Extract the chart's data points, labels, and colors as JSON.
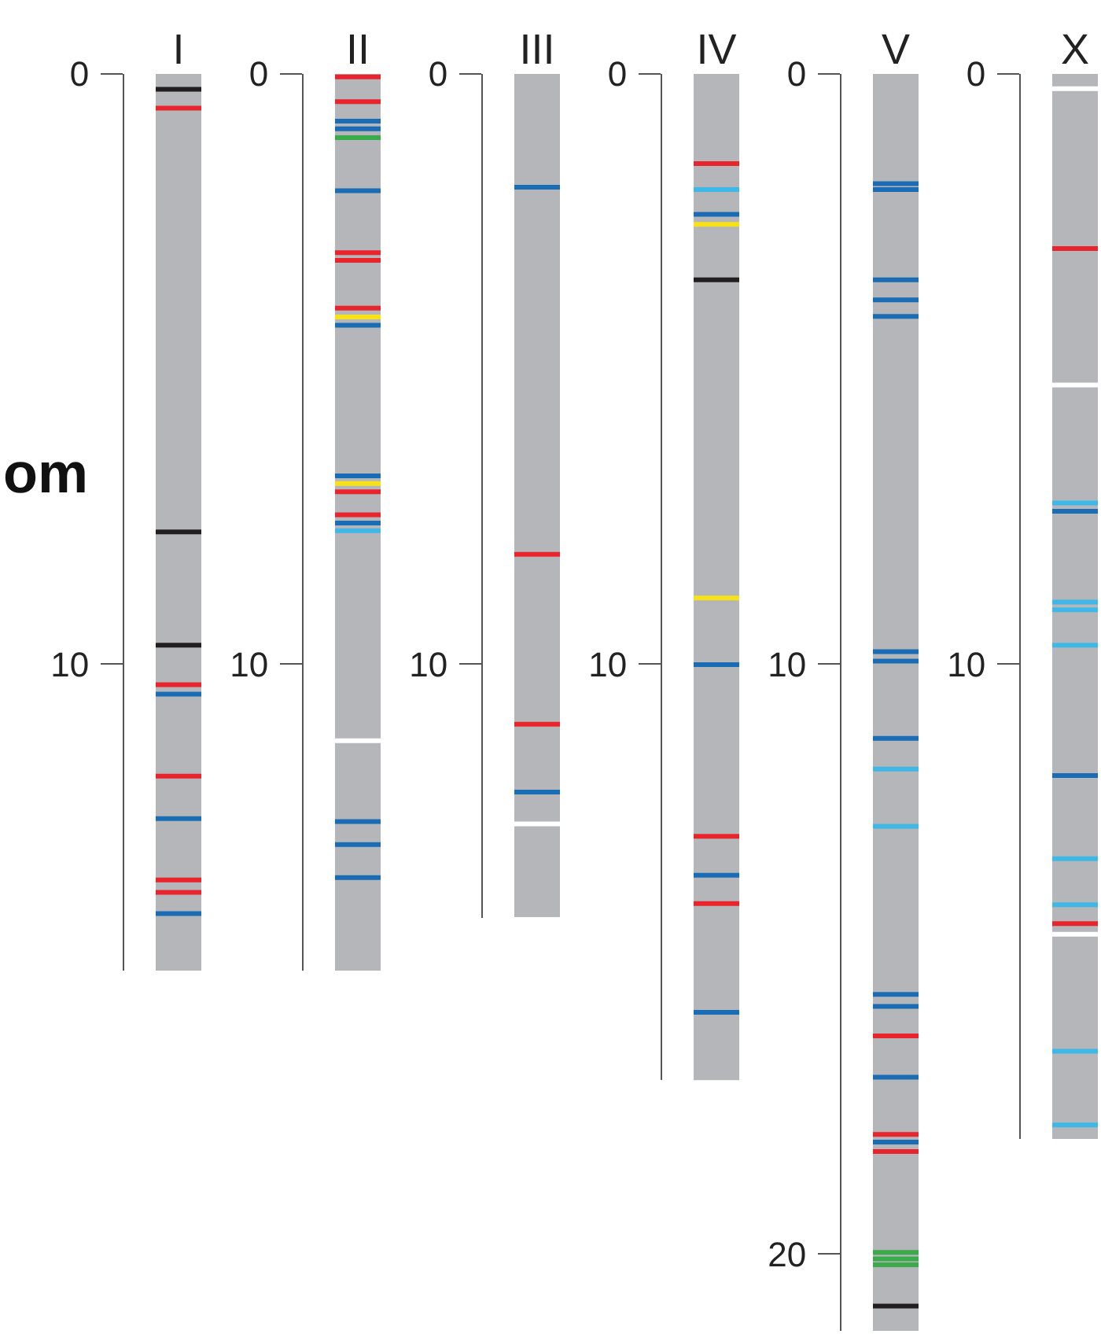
{
  "chart_data": [
    {
      "type": "bar",
      "categories": [
        "I"
      ],
      "values": [
        15.2
      ],
      "color": "#b5b6b9",
      "ylim": [
        15.2,
        0
      ],
      "yticks": [
        0,
        10
      ],
      "annotations": [
        "om"
      ],
      "ref_lines": [
        {
          "axis": "y",
          "value": 0.26,
          "color": "#231f20"
        },
        {
          "axis": "y",
          "value": 0.58,
          "color": "#e8242c"
        },
        {
          "axis": "y",
          "value": 7.76,
          "color": "#231f20"
        },
        {
          "axis": "y",
          "value": 9.68,
          "color": "#231f20"
        },
        {
          "axis": "y",
          "value": 10.35,
          "color": "#e8242c"
        },
        {
          "axis": "y",
          "value": 10.51,
          "color": "#1a6db5"
        },
        {
          "axis": "y",
          "value": 11.9,
          "color": "#e8242c"
        },
        {
          "axis": "y",
          "value": 12.62,
          "color": "#1a6db5"
        },
        {
          "axis": "y",
          "value": 13.66,
          "color": "#e8242c"
        },
        {
          "axis": "y",
          "value": 13.87,
          "color": "#e8242c"
        },
        {
          "axis": "y",
          "value": 14.23,
          "color": "#1a6db5"
        }
      ]
    },
    {
      "type": "bar",
      "categories": [
        "II"
      ],
      "values": [
        15.2
      ],
      "color": "#b5b6b9",
      "ylim": [
        15.2,
        0
      ],
      "yticks": [
        0,
        10
      ],
      "ref_lines": [
        {
          "axis": "y",
          "value": 0.05,
          "color": "#e8242c"
        },
        {
          "axis": "y",
          "value": 0.47,
          "color": "#e8242c"
        },
        {
          "axis": "y",
          "value": 0.8,
          "color": "#1a6db5"
        },
        {
          "axis": "y",
          "value": 0.93,
          "color": "#1a6db5"
        },
        {
          "axis": "y",
          "value": 1.08,
          "color": "#3aaa4a"
        },
        {
          "axis": "y",
          "value": 1.98,
          "color": "#1a6db5"
        },
        {
          "axis": "y",
          "value": 3.03,
          "color": "#e8242c"
        },
        {
          "axis": "y",
          "value": 3.16,
          "color": "#e8242c"
        },
        {
          "axis": "y",
          "value": 3.97,
          "color": "#e8242c"
        },
        {
          "axis": "y",
          "value": 4.12,
          "color": "#f7e21a"
        },
        {
          "axis": "y",
          "value": 4.26,
          "color": "#1a6db5"
        },
        {
          "axis": "y",
          "value": 6.81,
          "color": "#1a6db5"
        },
        {
          "axis": "y",
          "value": 6.94,
          "color": "#f7e21a"
        },
        {
          "axis": "y",
          "value": 7.08,
          "color": "#e8242c"
        },
        {
          "axis": "y",
          "value": 7.47,
          "color": "#e8242c"
        },
        {
          "axis": "y",
          "value": 7.61,
          "color": "#1a6db5"
        },
        {
          "axis": "y",
          "value": 7.74,
          "color": "#3fb8e8"
        },
        {
          "axis": "y",
          "value": 11.3,
          "color": "#ffffff"
        },
        {
          "axis": "y",
          "value": 12.67,
          "color": "#1a6db5"
        },
        {
          "axis": "y",
          "value": 13.06,
          "color": "#1a6db5"
        },
        {
          "axis": "y",
          "value": 13.62,
          "color": "#1a6db5"
        }
      ]
    },
    {
      "type": "bar",
      "categories": [
        "III"
      ],
      "values": [
        14.3
      ],
      "color": "#b5b6b9",
      "ylim": [
        14.3,
        0
      ],
      "yticks": [
        0,
        10
      ],
      "ref_lines": [
        {
          "axis": "y",
          "value": 1.92,
          "color": "#1a6db5"
        },
        {
          "axis": "y",
          "value": 8.14,
          "color": "#e8242c"
        },
        {
          "axis": "y",
          "value": 11.02,
          "color": "#e8242c"
        },
        {
          "axis": "y",
          "value": 12.17,
          "color": "#1a6db5"
        },
        {
          "axis": "y",
          "value": 12.71,
          "color": "#ffffff"
        }
      ]
    },
    {
      "type": "bar",
      "categories": [
        "IV"
      ],
      "values": [
        17.05
      ],
      "color": "#b5b6b9",
      "ylim": [
        17.05,
        0
      ],
      "yticks": [
        0,
        10
      ],
      "ref_lines": [
        {
          "axis": "y",
          "value": 1.52,
          "color": "#e8242c"
        },
        {
          "axis": "y",
          "value": 1.96,
          "color": "#3fb8e8"
        },
        {
          "axis": "y",
          "value": 2.38,
          "color": "#1a6db5"
        },
        {
          "axis": "y",
          "value": 2.55,
          "color": "#f7e21a"
        },
        {
          "axis": "y",
          "value": 3.49,
          "color": "#231f20"
        },
        {
          "axis": "y",
          "value": 8.88,
          "color": "#f7e21a"
        },
        {
          "axis": "y",
          "value": 10.01,
          "color": "#1a6db5"
        },
        {
          "axis": "y",
          "value": 12.92,
          "color": "#e8242c"
        },
        {
          "axis": "y",
          "value": 13.58,
          "color": "#1a6db5"
        },
        {
          "axis": "y",
          "value": 14.06,
          "color": "#e8242c"
        },
        {
          "axis": "y",
          "value": 15.9,
          "color": "#1a6db5"
        }
      ]
    },
    {
      "type": "bar",
      "categories": [
        "V"
      ],
      "values": [
        21.3
      ],
      "color": "#b5b6b9",
      "ylim": [
        21.3,
        0
      ],
      "yticks": [
        0,
        10,
        20
      ],
      "ref_lines": [
        {
          "axis": "y",
          "value": 1.86,
          "color": "#1a6db5"
        },
        {
          "axis": "y",
          "value": 1.96,
          "color": "#1a6db5"
        },
        {
          "axis": "y",
          "value": 3.49,
          "color": "#1a6db5"
        },
        {
          "axis": "y",
          "value": 3.83,
          "color": "#1a6db5"
        },
        {
          "axis": "y",
          "value": 4.11,
          "color": "#1a6db5"
        },
        {
          "axis": "y",
          "value": 9.79,
          "color": "#1a6db5"
        },
        {
          "axis": "y",
          "value": 9.95,
          "color": "#1a6db5"
        },
        {
          "axis": "y",
          "value": 11.26,
          "color": "#1a6db5"
        },
        {
          "axis": "y",
          "value": 11.78,
          "color": "#3fb8e8"
        },
        {
          "axis": "y",
          "value": 12.75,
          "color": "#3fb8e8"
        },
        {
          "axis": "y",
          "value": 15.6,
          "color": "#1a6db5"
        },
        {
          "axis": "y",
          "value": 15.8,
          "color": "#1a6db5"
        },
        {
          "axis": "y",
          "value": 16.3,
          "color": "#e8242c"
        },
        {
          "axis": "y",
          "value": 17.0,
          "color": "#1a6db5"
        },
        {
          "axis": "y",
          "value": 17.97,
          "color": "#e8242c"
        },
        {
          "axis": "y",
          "value": 18.1,
          "color": "#1a6db5"
        },
        {
          "axis": "y",
          "value": 18.26,
          "color": "#e8242c"
        },
        {
          "axis": "y",
          "value": 19.97,
          "color": "#3aaa4a"
        },
        {
          "axis": "y",
          "value": 20.08,
          "color": "#3aaa4a"
        },
        {
          "axis": "y",
          "value": 20.18,
          "color": "#3aaa4a"
        },
        {
          "axis": "y",
          "value": 20.88,
          "color": "#231f20"
        }
      ]
    },
    {
      "type": "bar",
      "categories": [
        "X"
      ],
      "values": [
        18.05
      ],
      "color": "#b5b6b9",
      "ylim": [
        18.05,
        0
      ],
      "yticks": [
        0,
        10
      ],
      "ref_lines": [
        {
          "axis": "y",
          "value": 0.25,
          "color": "#ffffff"
        },
        {
          "axis": "y",
          "value": 2.96,
          "color": "#e8242c"
        },
        {
          "axis": "y",
          "value": 5.27,
          "color": "#ffffff"
        },
        {
          "axis": "y",
          "value": 7.27,
          "color": "#3fb8e8"
        },
        {
          "axis": "y",
          "value": 7.41,
          "color": "#1a6db5"
        },
        {
          "axis": "y",
          "value": 8.95,
          "color": "#3fb8e8"
        },
        {
          "axis": "y",
          "value": 9.08,
          "color": "#3fb8e8"
        },
        {
          "axis": "y",
          "value": 9.68,
          "color": "#3fb8e8"
        },
        {
          "axis": "y",
          "value": 11.89,
          "color": "#1a6db5"
        },
        {
          "axis": "y",
          "value": 13.3,
          "color": "#3fb8e8"
        },
        {
          "axis": "y",
          "value": 14.08,
          "color": "#3fb8e8"
        },
        {
          "axis": "y",
          "value": 14.4,
          "color": "#e8242c"
        },
        {
          "axis": "y",
          "value": 14.58,
          "color": "#ffffff"
        },
        {
          "axis": "y",
          "value": 16.56,
          "color": "#3fb8e8"
        },
        {
          "axis": "y",
          "value": 17.81,
          "color": "#3fb8e8"
        }
      ]
    }
  ]
}
